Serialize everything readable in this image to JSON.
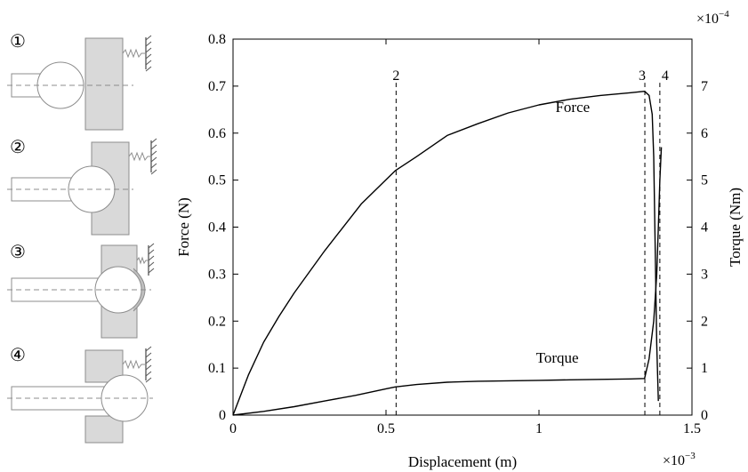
{
  "chart_data": {
    "type": "line",
    "xlabel": "Displacement (m)",
    "ylabel": "Force (N)",
    "y2label": "Torque (Nm)",
    "x_multiplier": "×10",
    "x_multiplier_exp": "−3",
    "y2_multiplier": "×10",
    "y2_multiplier_exp": "−4",
    "xlim": [
      0,
      1.5
    ],
    "ylim": [
      0,
      0.8
    ],
    "y2lim": [
      0,
      8
    ],
    "x_ticks": [
      0,
      0.5,
      1,
      1.5
    ],
    "x_tick_labels": [
      "0",
      "0.5",
      "1",
      "1.5"
    ],
    "y_ticks": [
      0,
      0.1,
      0.2,
      0.3,
      0.4,
      0.5,
      0.6,
      0.7,
      0.8
    ],
    "y_tick_labels": [
      "0",
      "0.1",
      "0.2",
      "0.3",
      "0.4",
      "0.5",
      "0.6",
      "0.7",
      "0.8"
    ],
    "y2_ticks": [
      0,
      1,
      2,
      3,
      4,
      5,
      6,
      7
    ],
    "y2_tick_labels": [
      "0",
      "1",
      "2",
      "3",
      "4",
      "5",
      "6",
      "7"
    ],
    "grid": false,
    "series": [
      {
        "name": "Force",
        "axis": "left",
        "x": [
          0,
          0.05,
          0.1,
          0.15,
          0.2,
          0.3,
          0.42,
          0.53,
          0.6,
          0.7,
          0.8,
          0.9,
          1.0,
          1.1,
          1.2,
          1.3,
          1.345,
          1.36,
          1.37,
          1.375,
          1.38,
          1.385,
          1.39
        ],
        "y": [
          0,
          0.085,
          0.155,
          0.21,
          0.26,
          0.35,
          0.45,
          0.52,
          0.55,
          0.595,
          0.62,
          0.643,
          0.66,
          0.672,
          0.68,
          0.686,
          0.689,
          0.68,
          0.64,
          0.55,
          0.35,
          0.15,
          0.03
        ]
      },
      {
        "name": "Torque",
        "axis": "right",
        "x": [
          0,
          0.1,
          0.2,
          0.3,
          0.4,
          0.5,
          0.53,
          0.6,
          0.7,
          0.8,
          0.9,
          1.0,
          1.1,
          1.2,
          1.3,
          1.345,
          1.36,
          1.375,
          1.385,
          1.39,
          1.395,
          1.4
        ],
        "y": [
          0,
          0.08,
          0.18,
          0.3,
          0.42,
          0.56,
          0.6,
          0.65,
          0.7,
          0.72,
          0.73,
          0.74,
          0.75,
          0.76,
          0.77,
          0.78,
          1.2,
          2.0,
          3.0,
          4.0,
          5.0,
          5.7
        ]
      }
    ],
    "annotations": [
      {
        "text": "Force",
        "x": 1.11,
        "y": 0.645
      },
      {
        "text": "Torque",
        "x": 1.06,
        "y": 0.112
      }
    ],
    "vlines": [
      {
        "label": "2",
        "x": 0.533,
        "ytop": 0.69
      },
      {
        "label": "3",
        "x": 1.346,
        "ytop": 0.69
      },
      {
        "label": "4",
        "x": 1.395,
        "ytop": 0.69
      }
    ]
  },
  "stages": [
    {
      "label": "①",
      "state": "approach"
    },
    {
      "label": "②",
      "state": "contact"
    },
    {
      "label": "③",
      "state": "peak"
    },
    {
      "label": "④",
      "state": "release"
    }
  ]
}
